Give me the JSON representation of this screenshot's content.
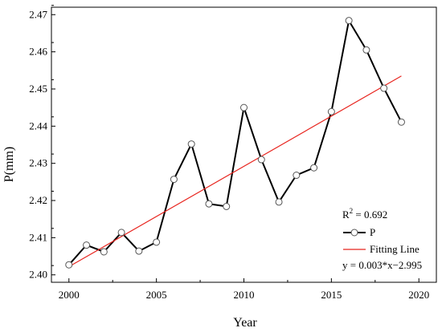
{
  "chart_data": {
    "type": "line",
    "xlabel": "Year",
    "ylabel": "P(mm)",
    "xlim": [
      1999,
      2021
    ],
    "ylim": [
      2.398,
      2.472
    ],
    "xticks": [
      2000,
      2005,
      2010,
      2015,
      2020
    ],
    "yticks": [
      2.4,
      2.41,
      2.42,
      2.43,
      2.44,
      2.45,
      2.46,
      2.47
    ],
    "ytick_labels": [
      "2.40",
      "2.41",
      "2.42",
      "2.43",
      "2.44",
      "2.45",
      "2.46",
      "2.47"
    ],
    "grid": false,
    "legend_position": "bottom-right",
    "series": [
      {
        "name": "P",
        "color": "#000000",
        "marker": "open-circle",
        "x": [
          2000,
          2001,
          2002,
          2003,
          2004,
          2005,
          2006,
          2007,
          2008,
          2009,
          2010,
          2011,
          2012,
          2013,
          2014,
          2015,
          2016,
          2017,
          2018,
          2019
        ],
        "y": [
          2.4027,
          2.408,
          2.4062,
          2.4114,
          2.4064,
          2.4088,
          2.4257,
          2.4352,
          2.4191,
          2.4184,
          2.445,
          2.431,
          2.4196,
          2.4268,
          2.4288,
          2.4439,
          2.4684,
          2.4605,
          2.4502,
          2.4411
        ]
      },
      {
        "name": "Fitting Line",
        "color": "#e8251f",
        "x": [
          2000,
          2019
        ],
        "y": [
          2.4022,
          2.4535
        ]
      }
    ],
    "annotations": {
      "r2_label": "R",
      "r2_sup": "2",
      "r2_value": " = 0.692",
      "equation": "y = 0.003*x−2.995"
    }
  }
}
